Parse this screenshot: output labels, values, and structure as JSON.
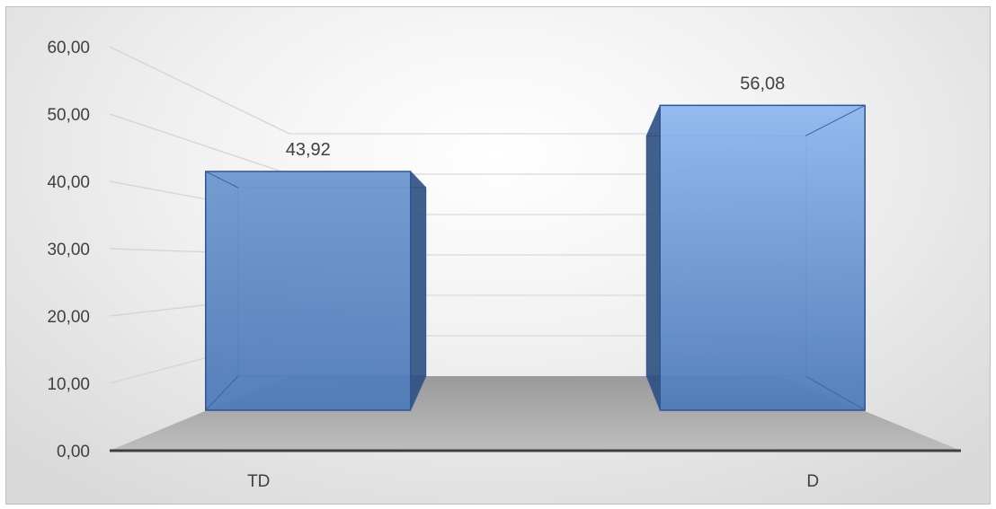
{
  "chart_data": {
    "type": "bar",
    "style": "3d-column",
    "categories": [
      "TD",
      "D"
    ],
    "values": [
      43.92,
      56.08
    ],
    "data_labels": [
      "43,92",
      "56,08"
    ],
    "y_ticks": [
      "0,00",
      "10,00",
      "20,00",
      "30,00",
      "40,00",
      "50,00",
      "60,00"
    ],
    "ylim": [
      0,
      60
    ],
    "title": "",
    "xlabel": "",
    "ylabel": "",
    "grid": true,
    "legend": "none",
    "colors": {
      "bar_front": "#5b87c2",
      "bar_side": "#2c4f7f",
      "bar_edge": "#2f5597",
      "floor": "#a6a6a6",
      "axis": "#404040"
    }
  }
}
